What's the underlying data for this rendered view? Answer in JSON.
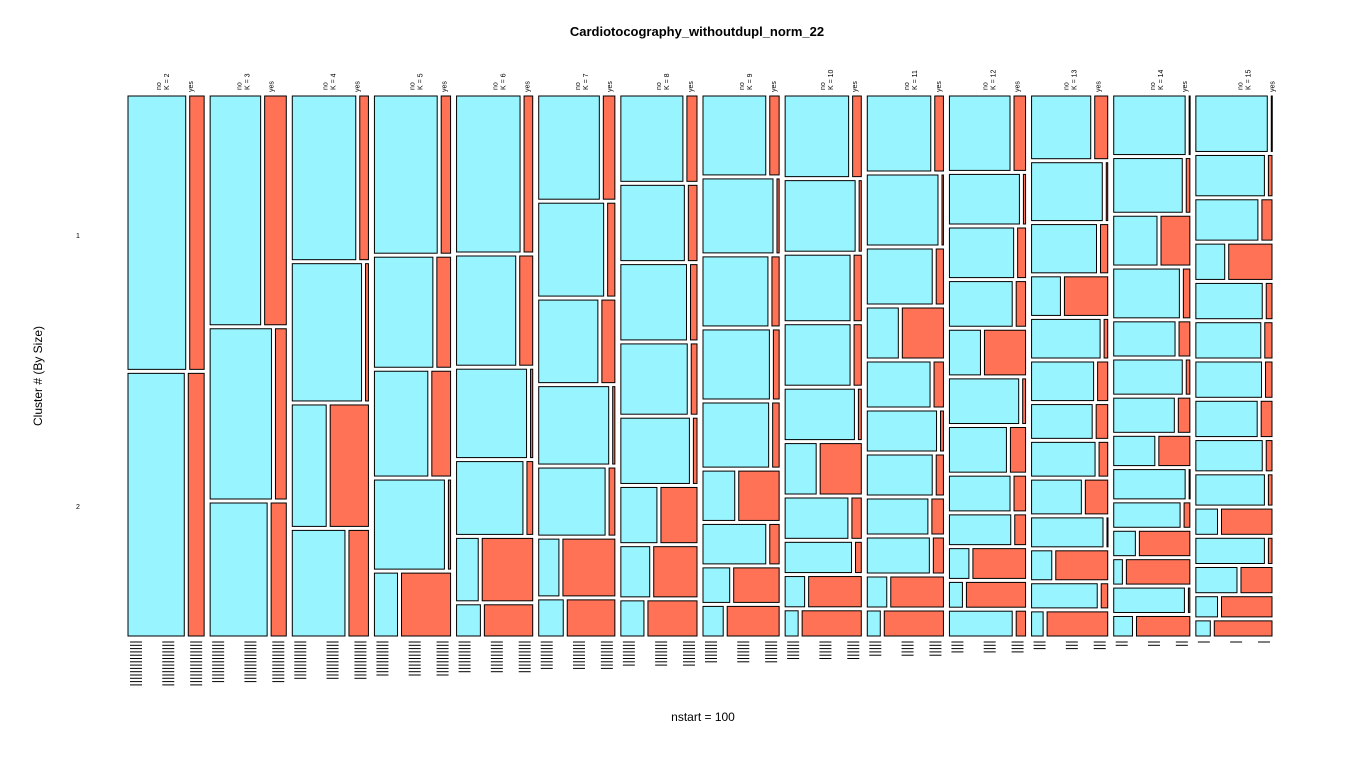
{
  "chart_data": {
    "type": "mosaic",
    "title": "Cardiotocography_withoutdupl_norm_22",
    "xlabel": "nstart = 100",
    "ylabel": "Cluster # (By Size)",
    "y_tick_labels": [
      "1",
      "2"
    ],
    "class_labels": [
      "no",
      "yes"
    ],
    "colors": {
      "no": "#98F5FF",
      "yes": "#FF7256",
      "stroke": "#000000"
    },
    "panels": [
      {
        "k_label": "K = 2",
        "width_no": 0.76,
        "clusters": [
          {
            "size": 0.51,
            "yes_frac": 0.2
          },
          {
            "size": 0.49,
            "yes_frac": 0.22
          }
        ]
      },
      {
        "k_label": "K = 3",
        "width_no": 0.74,
        "clusters": [
          {
            "size": 0.43,
            "yes_frac": 0.3
          },
          {
            "size": 0.32,
            "yes_frac": 0.15
          },
          {
            "size": 0.25,
            "yes_frac": 0.21
          }
        ]
      },
      {
        "k_label": "K = 4",
        "width_no": 0.79,
        "clusters": [
          {
            "size": 0.31,
            "yes_frac": 0.12
          },
          {
            "size": 0.26,
            "yes_frac": 0.04
          },
          {
            "size": 0.23,
            "yes_frac": 0.53
          },
          {
            "size": 0.2,
            "yes_frac": 0.27
          }
        ]
      },
      {
        "k_label": "K = 5",
        "width_no": 0.86,
        "clusters": [
          {
            "size": 0.3,
            "yes_frac": 0.13
          },
          {
            "size": 0.21,
            "yes_frac": 0.19
          },
          {
            "size": 0.2,
            "yes_frac": 0.26
          },
          {
            "size": 0.17,
            "yes_frac": 0.03
          },
          {
            "size": 0.12,
            "yes_frac": 0.68
          }
        ]
      },
      {
        "k_label": "K = 6",
        "width_no": 0.87,
        "clusters": [
          {
            "size": 0.3,
            "yes_frac": 0.12
          },
          {
            "size": 0.21,
            "yes_frac": 0.18
          },
          {
            "size": 0.17,
            "yes_frac": 0.03
          },
          {
            "size": 0.14,
            "yes_frac": 0.08
          },
          {
            "size": 0.12,
            "yes_frac": 0.7
          },
          {
            "size": 0.06,
            "yes_frac": 0.67
          }
        ]
      },
      {
        "k_label": "K = 7",
        "width_no": 0.88,
        "clusters": [
          {
            "size": 0.2,
            "yes_frac": 0.16
          },
          {
            "size": 0.18,
            "yes_frac": 0.1
          },
          {
            "size": 0.16,
            "yes_frac": 0.18
          },
          {
            "size": 0.15,
            "yes_frac": 0.03
          },
          {
            "size": 0.13,
            "yes_frac": 0.08
          },
          {
            "size": 0.11,
            "yes_frac": 0.72
          },
          {
            "size": 0.07,
            "yes_frac": 0.66
          }
        ]
      },
      {
        "k_label": "K = 8",
        "width_no": 0.86,
        "clusters": [
          {
            "size": 0.17,
            "yes_frac": 0.14
          },
          {
            "size": 0.15,
            "yes_frac": 0.12
          },
          {
            "size": 0.15,
            "yes_frac": 0.09
          },
          {
            "size": 0.14,
            "yes_frac": 0.08
          },
          {
            "size": 0.13,
            "yes_frac": 0.05
          },
          {
            "size": 0.11,
            "yes_frac": 0.5
          },
          {
            "size": 0.1,
            "yes_frac": 0.6
          },
          {
            "size": 0.07,
            "yes_frac": 0.68
          }
        ]
      },
      {
        "k_label": "K = 9",
        "width_no": 0.87,
        "clusters": [
          {
            "size": 0.16,
            "yes_frac": 0.13
          },
          {
            "size": 0.15,
            "yes_frac": 0.03
          },
          {
            "size": 0.14,
            "yes_frac": 0.1
          },
          {
            "size": 0.14,
            "yes_frac": 0.08
          },
          {
            "size": 0.13,
            "yes_frac": 0.09
          },
          {
            "size": 0.1,
            "yes_frac": 0.56
          },
          {
            "size": 0.08,
            "yes_frac": 0.13
          },
          {
            "size": 0.07,
            "yes_frac": 0.63
          },
          {
            "size": 0.06,
            "yes_frac": 0.72
          }
        ]
      },
      {
        "k_label": "K = 10",
        "width_no": 0.86,
        "clusters": [
          {
            "size": 0.16,
            "yes_frac": 0.12
          },
          {
            "size": 0.14,
            "yes_frac": 0.03
          },
          {
            "size": 0.13,
            "yes_frac": 0.1
          },
          {
            "size": 0.12,
            "yes_frac": 0.1
          },
          {
            "size": 0.1,
            "yes_frac": 0.04
          },
          {
            "size": 0.1,
            "yes_frac": 0.57
          },
          {
            "size": 0.08,
            "yes_frac": 0.13
          },
          {
            "size": 0.06,
            "yes_frac": 0.08
          },
          {
            "size": 0.06,
            "yes_frac": 0.73
          },
          {
            "size": 0.05,
            "yes_frac": 0.82
          }
        ]
      },
      {
        "k_label": "K = 11",
        "width_no": 0.88,
        "clusters": [
          {
            "size": 0.15,
            "yes_frac": 0.12
          },
          {
            "size": 0.14,
            "yes_frac": 0.02
          },
          {
            "size": 0.11,
            "yes_frac": 0.1
          },
          {
            "size": 0.1,
            "yes_frac": 0.57
          },
          {
            "size": 0.09,
            "yes_frac": 0.13
          },
          {
            "size": 0.08,
            "yes_frac": 0.04
          },
          {
            "size": 0.08,
            "yes_frac": 0.1
          },
          {
            "size": 0.07,
            "yes_frac": 0.16
          },
          {
            "size": 0.07,
            "yes_frac": 0.14
          },
          {
            "size": 0.06,
            "yes_frac": 0.73
          },
          {
            "size": 0.05,
            "yes_frac": 0.82
          }
        ]
      },
      {
        "k_label": "K = 12",
        "width_no": 0.83,
        "clusters": [
          {
            "size": 0.15,
            "yes_frac": 0.16
          },
          {
            "size": 0.1,
            "yes_frac": 0.03
          },
          {
            "size": 0.1,
            "yes_frac": 0.11
          },
          {
            "size": 0.09,
            "yes_frac": 0.13
          },
          {
            "size": 0.09,
            "yes_frac": 0.57
          },
          {
            "size": 0.09,
            "yes_frac": 0.04
          },
          {
            "size": 0.09,
            "yes_frac": 0.21
          },
          {
            "size": 0.07,
            "yes_frac": 0.16
          },
          {
            "size": 0.06,
            "yes_frac": 0.15
          },
          {
            "size": 0.06,
            "yes_frac": 0.73
          },
          {
            "size": 0.05,
            "yes_frac": 0.82
          },
          {
            "size": 0.05,
            "yes_frac": 0.13
          }
        ]
      },
      {
        "k_label": "K = 13",
        "width_no": 0.82,
        "clusters": [
          {
            "size": 0.13,
            "yes_frac": 0.18
          },
          {
            "size": 0.12,
            "yes_frac": 0.02
          },
          {
            "size": 0.1,
            "yes_frac": 0.1
          },
          {
            "size": 0.08,
            "yes_frac": 0.6
          },
          {
            "size": 0.08,
            "yes_frac": 0.05
          },
          {
            "size": 0.08,
            "yes_frac": 0.14
          },
          {
            "size": 0.07,
            "yes_frac": 0.16
          },
          {
            "size": 0.07,
            "yes_frac": 0.12
          },
          {
            "size": 0.07,
            "yes_frac": 0.31
          },
          {
            "size": 0.06,
            "yes_frac": 0.01
          },
          {
            "size": 0.06,
            "yes_frac": 0.72
          },
          {
            "size": 0.05,
            "yes_frac": 0.09
          },
          {
            "size": 0.05,
            "yes_frac": 0.84
          }
        ]
      },
      {
        "k_label": "K = 14",
        "width_no": 0.88,
        "clusters": [
          {
            "size": 0.12,
            "yes_frac": 0.01
          },
          {
            "size": 0.11,
            "yes_frac": 0.05
          },
          {
            "size": 0.1,
            "yes_frac": 0.4
          },
          {
            "size": 0.1,
            "yes_frac": 0.09
          },
          {
            "size": 0.07,
            "yes_frac": 0.15
          },
          {
            "size": 0.07,
            "yes_frac": 0.05
          },
          {
            "size": 0.07,
            "yes_frac": 0.16
          },
          {
            "size": 0.06,
            "yes_frac": 0.43
          },
          {
            "size": 0.06,
            "yes_frac": 0.01
          },
          {
            "size": 0.05,
            "yes_frac": 0.08
          },
          {
            "size": 0.05,
            "yes_frac": 0.7
          },
          {
            "size": 0.05,
            "yes_frac": 0.88
          },
          {
            "size": 0.05,
            "yes_frac": 0.02
          },
          {
            "size": 0.04,
            "yes_frac": 0.74
          }
        ]
      },
      {
        "k_label": "K = 15",
        "width_no": 0.95,
        "clusters": [
          {
            "size": 0.11,
            "yes_frac": 0.01
          },
          {
            "size": 0.08,
            "yes_frac": 0.05
          },
          {
            "size": 0.08,
            "yes_frac": 0.14
          },
          {
            "size": 0.07,
            "yes_frac": 0.6
          },
          {
            "size": 0.07,
            "yes_frac": 0.08
          },
          {
            "size": 0.07,
            "yes_frac": 0.1
          },
          {
            "size": 0.07,
            "yes_frac": 0.09
          },
          {
            "size": 0.07,
            "yes_frac": 0.15
          },
          {
            "size": 0.06,
            "yes_frac": 0.08
          },
          {
            "size": 0.06,
            "yes_frac": 0.05
          },
          {
            "size": 0.05,
            "yes_frac": 0.7
          },
          {
            "size": 0.05,
            "yes_frac": 0.05
          },
          {
            "size": 0.05,
            "yes_frac": 0.43
          },
          {
            "size": 0.04,
            "yes_frac": 0.7
          },
          {
            "size": 0.03,
            "yes_frac": 0.8
          }
        ]
      }
    ]
  }
}
